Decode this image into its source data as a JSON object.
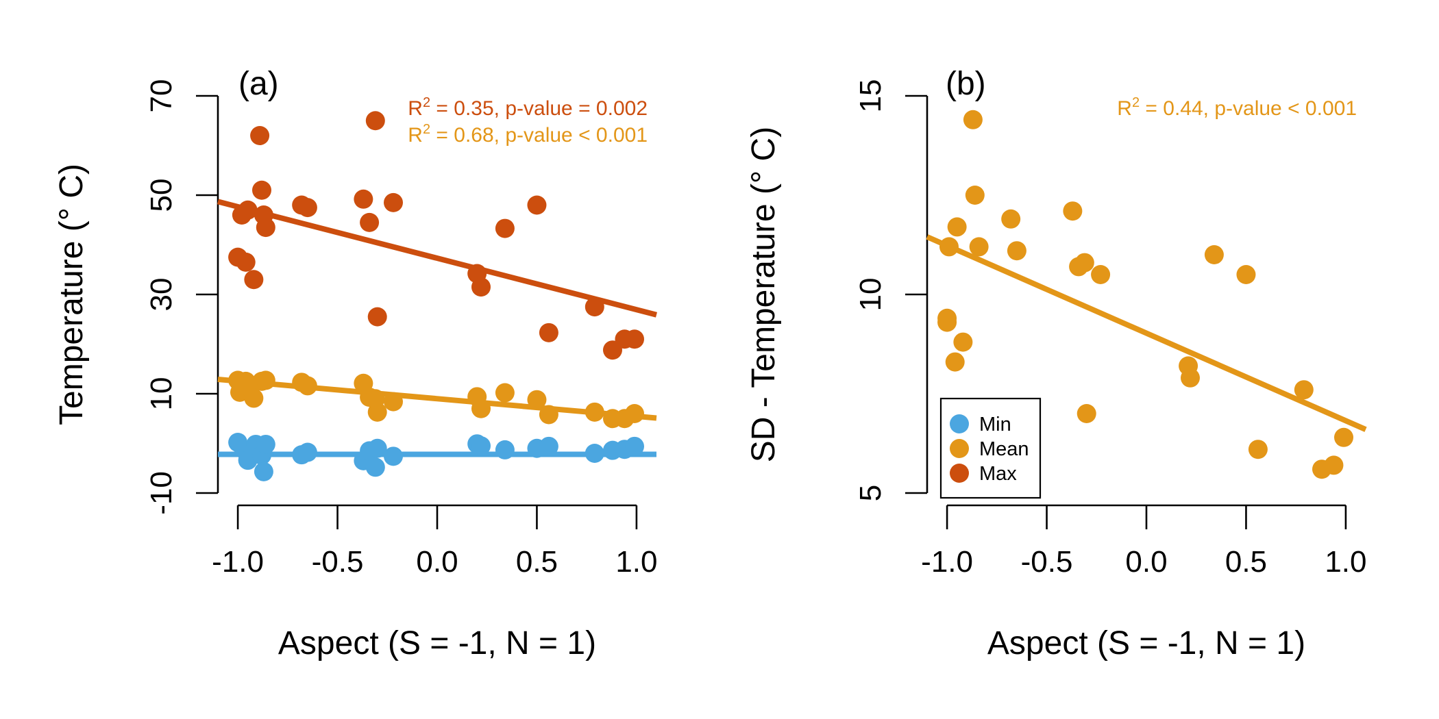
{
  "colors": {
    "min": "#4ba6e0",
    "mean": "#e39618",
    "max": "#cc4e0e"
  },
  "chart_data": [
    {
      "type": "scatter",
      "panel_label": "(a)",
      "xlabel": "Aspect (S = -1, N = 1)",
      "ylabel": "Temperature (° C)",
      "xlim": [
        -1.1,
        1.1
      ],
      "ylim": [
        -10,
        70
      ],
      "xticks": [
        -1.0,
        -0.5,
        0.0,
        0.5,
        1.0
      ],
      "xtick_labels": [
        "-1.0",
        "-0.5",
        "0.0",
        "0.5",
        "1.0"
      ],
      "yticks": [
        -10,
        10,
        30,
        50,
        70
      ],
      "ytick_labels": [
        "-10",
        "10",
        "30",
        "50",
        "70"
      ],
      "annotations": [
        {
          "series": "max",
          "r2_label": "R",
          "sup": "2",
          "text": " = 0.35, p-value = 0.002"
        },
        {
          "series": "mean",
          "r2_label": "R",
          "sup": "2",
          "text": " = 0.68, p-value < 0.001"
        }
      ],
      "series": [
        {
          "name": "Max",
          "color_key": "max",
          "x": [
            -1.0,
            -0.98,
            -0.96,
            -0.95,
            -0.92,
            -0.89,
            -0.88,
            -0.87,
            -0.86,
            -0.68,
            -0.65,
            -0.37,
            -0.34,
            -0.31,
            -0.3,
            -0.22,
            0.2,
            0.22,
            0.34,
            0.5,
            0.56,
            0.79,
            0.88,
            0.94,
            0.99
          ],
          "y": [
            37.5,
            46,
            36.5,
            47,
            33,
            62,
            51,
            46,
            43.5,
            48,
            47.5,
            49.2,
            44.5,
            65,
            25.5,
            48.5,
            34.2,
            31.5,
            43.3,
            48,
            22.3,
            27.5,
            18.8,
            21,
            21
          ],
          "fit": [
            [
              -1.1,
              48.7
            ],
            [
              1.1,
              25.9
            ]
          ]
        },
        {
          "name": "Mean",
          "color_key": "mean",
          "x": [
            -1.0,
            -0.99,
            -0.96,
            -0.95,
            -0.92,
            -0.88,
            -0.86,
            -0.68,
            -0.65,
            -0.37,
            -0.34,
            -0.31,
            -0.3,
            -0.22,
            0.2,
            0.22,
            0.34,
            0.5,
            0.56,
            0.79,
            0.88,
            0.94,
            0.99
          ],
          "y": [
            12.7,
            10.3,
            12.5,
            11.5,
            9.1,
            12.5,
            12.7,
            12.3,
            11.6,
            12.1,
            9.3,
            9,
            6.3,
            8.4,
            9.4,
            7,
            10.2,
            8.8,
            5.8,
            6.3,
            5,
            5,
            6
          ],
          "fit": [
            [
              -1.1,
              12.9
            ],
            [
              1.1,
              5.1
            ]
          ]
        },
        {
          "name": "Min",
          "color_key": "min",
          "x": [
            -1.0,
            -0.97,
            -0.95,
            -0.91,
            -0.88,
            -0.87,
            -0.86,
            -0.68,
            -0.65,
            -0.37,
            -0.34,
            -0.31,
            -0.3,
            -0.22,
            0.2,
            0.22,
            0.34,
            0.5,
            0.56,
            0.79,
            0.88,
            0.94,
            0.99
          ],
          "y": [
            0.2,
            -1.2,
            -3.4,
            -0.2,
            -2.4,
            -5.7,
            -0.2,
            -2.3,
            -1.8,
            -3.5,
            -1.5,
            -4.8,
            -1.0,
            -2.6,
            -0.1,
            -0.5,
            -1.3,
            -1.0,
            -0.6,
            -2.0,
            -1.4,
            -1.2,
            -0.6
          ],
          "fit": [
            [
              -1.1,
              -2.2
            ],
            [
              1.1,
              -2.2
            ]
          ]
        }
      ]
    },
    {
      "type": "scatter",
      "panel_label": "(b)",
      "xlabel": "Aspect (S = -1, N = 1)",
      "ylabel": "SD - Temperature (° C)",
      "xlim": [
        -1.1,
        1.1
      ],
      "ylim": [
        5,
        15
      ],
      "xticks": [
        -1.0,
        -0.5,
        0.0,
        0.5,
        1.0
      ],
      "xtick_labels": [
        "-1.0",
        "-0.5",
        "0.0",
        "0.5",
        "1.0"
      ],
      "yticks": [
        5,
        10,
        15
      ],
      "ytick_labels": [
        "5",
        "10",
        "15"
      ],
      "annotations": [
        {
          "series": "mean",
          "r2_label": "R",
          "sup": "2",
          "text": " = 0.44, p-value < 0.001"
        }
      ],
      "legend": {
        "position": "bottom-left",
        "entries": [
          {
            "label": "Min",
            "color_key": "min"
          },
          {
            "label": "Mean",
            "color_key": "mean"
          },
          {
            "label": "Max",
            "color_key": "max"
          }
        ]
      },
      "series": [
        {
          "name": "Mean",
          "color_key": "mean",
          "x": [
            -1.0,
            -1.0,
            -0.99,
            -0.96,
            -0.95,
            -0.92,
            -0.87,
            -0.86,
            -0.84,
            -0.68,
            -0.65,
            -0.37,
            -0.34,
            -0.31,
            -0.3,
            -0.23,
            0.21,
            0.22,
            0.34,
            0.5,
            0.56,
            0.79,
            0.88,
            0.94,
            0.99
          ],
          "y": [
            9.4,
            9.3,
            11.2,
            8.3,
            11.7,
            8.8,
            14.4,
            12.5,
            11.2,
            11.9,
            11.1,
            12.1,
            10.7,
            10.8,
            7,
            10.5,
            8.2,
            7.9,
            11,
            10.5,
            6.1,
            7.6,
            5.6,
            5.7,
            6.4
          ],
          "fit": [
            [
              -1.1,
              11.45
            ],
            [
              1.1,
              6.6
            ]
          ]
        }
      ]
    }
  ]
}
